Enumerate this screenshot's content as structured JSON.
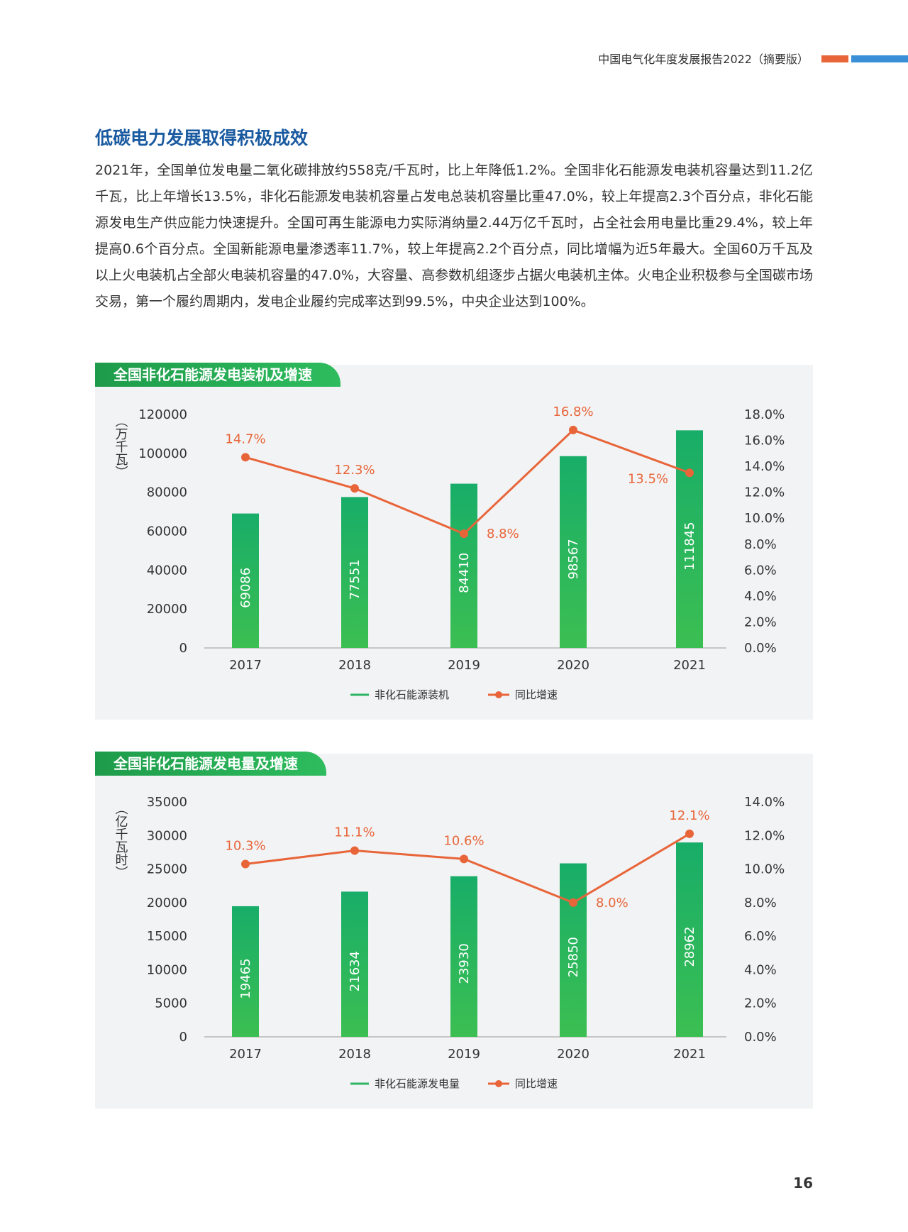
{
  "header": {
    "title": "中国电气化年度发展报告2022（摘要版）"
  },
  "section": {
    "title": "低碳电力发展取得积极成效",
    "paragraph": "2021年，全国单位发电量二氧化碳排放约558克/千瓦时，比上年降低1.2%。全国非化石能源发电装机容量达到11.2亿千瓦，比上年增长13.5%，非化石能源发电装机容量占发电总装机容量比重47.0%，较上年提高2.3个百分点，非化石能源发电生产供应能力快速提升。全国可再生能源电力实际消纳量2.44万亿千瓦时，占全社会用电量比重29.4%，较上年提高0.6个百分点。全国新能源电量渗透率11.7%，较上年提高2.2个百分点，同比增幅为近5年最大。全国60万千瓦及以上火电装机占全部火电装机容量的47.0%，大容量、高参数机组逐步占据火电装机主体。火电企业积极参与全国碳市场交易，第一个履约周期内，发电企业履约完成率达到99.5%，中央企业达到100%。"
  },
  "page_number": "16",
  "colors": {
    "bar": "#2db563",
    "line": "#e8653a",
    "tab": "#1e9b4a",
    "title": "#1a5aa0"
  },
  "chart_data": [
    {
      "type": "bar",
      "title": "全国非化石能源发电装机及增速",
      "ylabel": "（万千瓦）",
      "categories": [
        "2017",
        "2018",
        "2019",
        "2020",
        "2021"
      ],
      "ylim": [
        0,
        120000
      ],
      "yticks": [
        "0",
        "20000",
        "40000",
        "60000",
        "80000",
        "100000",
        "120000"
      ],
      "y2lim": [
        0,
        18
      ],
      "y2ticks": [
        "0.0%",
        "2.0%",
        "4.0%",
        "6.0%",
        "8.0%",
        "10.0%",
        "12.0%",
        "14.0%",
        "16.0%",
        "18.0%"
      ],
      "series": [
        {
          "name": "非化石能源装机",
          "type": "bar",
          "values": [
            69086,
            77551,
            84410,
            98567,
            111845
          ],
          "labels": [
            "69086",
            "77551",
            "84410",
            "98567",
            "111845"
          ]
        },
        {
          "name": "同比增速",
          "type": "line",
          "axis": "right",
          "values": [
            14.7,
            12.3,
            8.8,
            16.8,
            13.5
          ],
          "labels": [
            "14.7%",
            "12.3%",
            "8.8%",
            "16.8%",
            "13.5%"
          ]
        }
      ],
      "legend": "bottom"
    },
    {
      "type": "bar",
      "title": "全国非化石能源发电量及增速",
      "ylabel": "（亿千瓦时）",
      "categories": [
        "2017",
        "2018",
        "2019",
        "2020",
        "2021"
      ],
      "ylim": [
        0,
        35000
      ],
      "yticks": [
        "0",
        "5000",
        "10000",
        "15000",
        "20000",
        "25000",
        "30000",
        "35000"
      ],
      "y2lim": [
        0,
        14
      ],
      "y2ticks": [
        "0.0%",
        "2.0%",
        "4.0%",
        "6.0%",
        "8.0%",
        "10.0%",
        "12.0%",
        "14.0%"
      ],
      "series": [
        {
          "name": "非化石能源发电量",
          "type": "bar",
          "values": [
            19465,
            21634,
            23930,
            25850,
            28962
          ],
          "labels": [
            "19465",
            "21634",
            "23930",
            "25850",
            "28962"
          ]
        },
        {
          "name": "同比增速",
          "type": "line",
          "axis": "right",
          "values": [
            10.3,
            11.1,
            10.6,
            8.0,
            12.1
          ],
          "labels": [
            "10.3%",
            "11.1%",
            "10.6%",
            "8.0%",
            "12.1%"
          ]
        }
      ],
      "legend": "bottom"
    }
  ]
}
